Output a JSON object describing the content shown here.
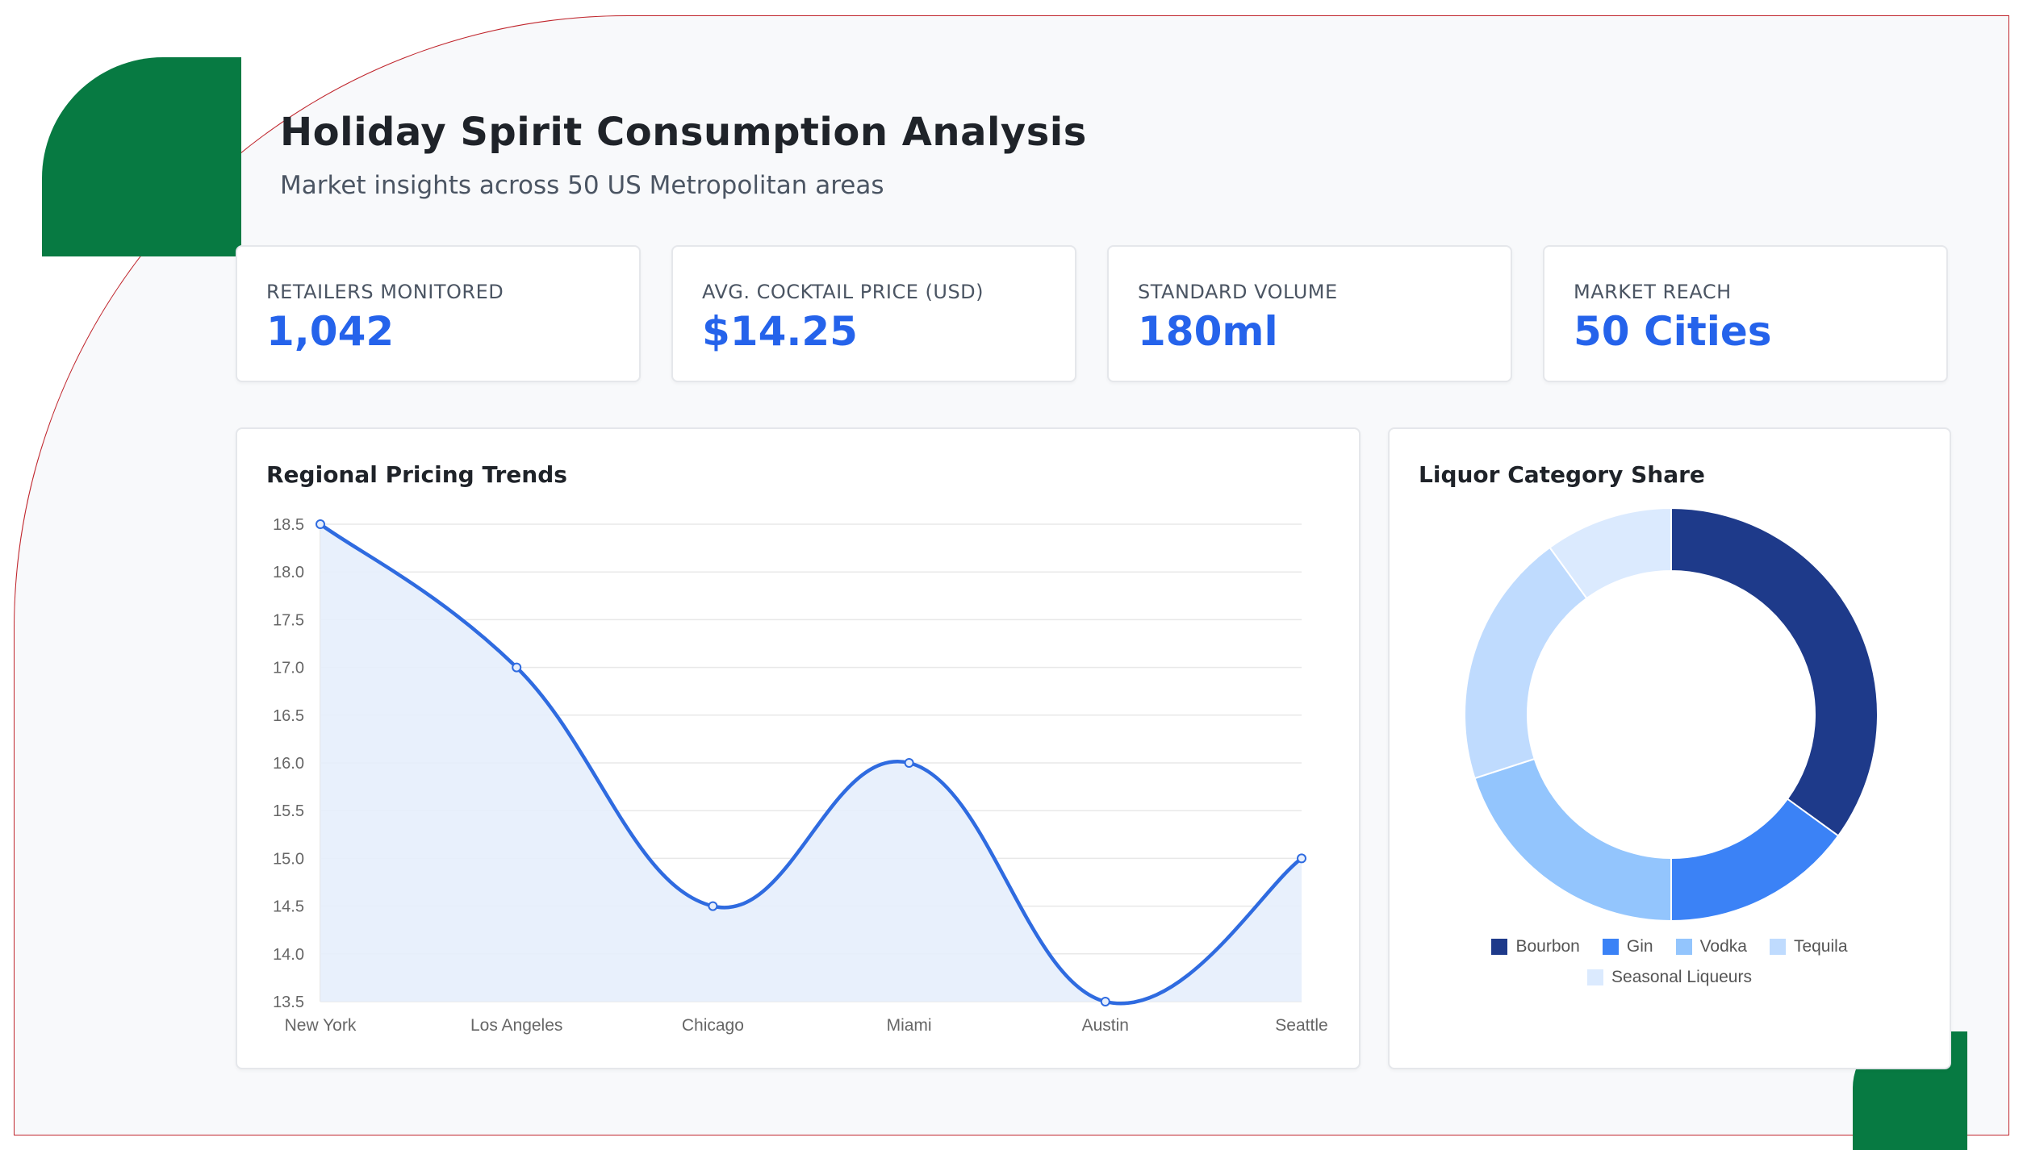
{
  "header": {
    "title": "Holiday Spirit Consumption Analysis",
    "subtitle": "Market insights across 50 US Metropolitan areas"
  },
  "kpis": [
    {
      "label": "RETAILERS MONITORED",
      "value": "1,042"
    },
    {
      "label": "AVG. COCKTAIL PRICE (USD)",
      "value": "$14.25"
    },
    {
      "label": "STANDARD VOLUME",
      "value": "180ml"
    },
    {
      "label": "MARKET REACH",
      "value": "50 Cities"
    }
  ],
  "colors": {
    "accent": "#2563eb",
    "brand_green": "#077a42",
    "frame_red": "#c0262d",
    "line": "#2f6be0",
    "area_fill": "#e6eefc"
  },
  "chart_data": [
    {
      "type": "line",
      "title": "Regional Pricing Trends",
      "categories": [
        "New York",
        "Los Angeles",
        "Chicago",
        "Miami",
        "Austin",
        "Seattle"
      ],
      "series": [
        {
          "values": [
            18.5,
            17.0,
            14.5,
            16.0,
            13.5,
            15.0
          ]
        }
      ],
      "ylim": [
        13.5,
        18.5
      ],
      "yticks": [
        "18.5",
        "18.0",
        "17.5",
        "17.0",
        "16.5",
        "16.0",
        "15.5",
        "15.0",
        "14.5",
        "14.0",
        "13.5"
      ],
      "fill": true,
      "grid": true,
      "xlabel": "",
      "ylabel": ""
    },
    {
      "type": "pie",
      "variant": "doughnut",
      "title": "Liquor Category Share",
      "labels": [
        "Bourbon",
        "Gin",
        "Vodka",
        "Tequila",
        "Seasonal Liqueurs"
      ],
      "values": [
        35,
        15,
        20,
        20,
        10
      ],
      "colors": [
        "#1e3a8a",
        "#3b82f6",
        "#93c5fd",
        "#bfdbfe",
        "#dbeafe"
      ],
      "legend": "bottom"
    }
  ]
}
